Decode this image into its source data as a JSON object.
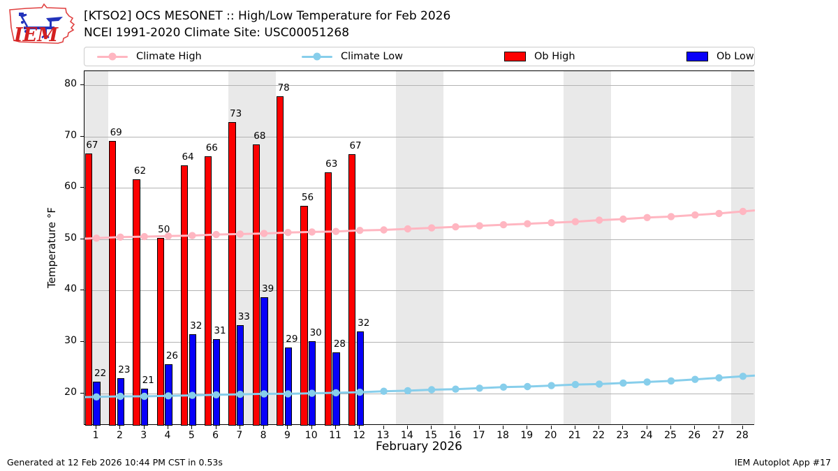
{
  "header": {
    "title_line1": "[KTSO2] OCS MESONET :: High/Low Temperature for Feb 2026",
    "title_line2": "NCEI 1991-2020 Climate Site: USC00051268"
  },
  "logo": {
    "text": "IEM"
  },
  "legend": {
    "items": [
      {
        "label": "Climate High",
        "type": "line",
        "color": "#ffb6c1"
      },
      {
        "label": "Climate Low",
        "type": "line",
        "color": "#87ceeb"
      },
      {
        "label": "Ob High",
        "type": "swatch",
        "color": "#fd0000"
      },
      {
        "label": "Ob Low",
        "type": "swatch",
        "color": "#0800f9"
      }
    ]
  },
  "chart_data": {
    "type": "bar",
    "title": "[KTSO2] OCS MESONET :: High/Low Temperature for Feb 2026",
    "subtitle": "NCEI 1991-2020 Climate Site: USC00051268",
    "xlabel": "February 2026",
    "ylabel": "Temperature °F",
    "xlim": [
      0.5,
      28.5
    ],
    "ylim": [
      13.7,
      82.7
    ],
    "yticks": [
      20,
      30,
      40,
      50,
      60,
      70,
      80
    ],
    "xticks": [
      1,
      2,
      3,
      4,
      5,
      6,
      7,
      8,
      9,
      10,
      11,
      12,
      13,
      14,
      15,
      16,
      17,
      18,
      19,
      20,
      21,
      22,
      23,
      24,
      25,
      26,
      27,
      28
    ],
    "grid": "horizontal",
    "legend_position": "top",
    "weekend_bands": [
      [
        0.5,
        1.5
      ],
      [
        6.5,
        8.5
      ],
      [
        13.5,
        15.5
      ],
      [
        20.5,
        22.5
      ],
      [
        27.5,
        28.5
      ]
    ],
    "series": [
      {
        "name": "Climate High",
        "type": "line",
        "color": "#ffb6c1",
        "x": [
          1,
          2,
          3,
          4,
          5,
          6,
          7,
          8,
          9,
          10,
          11,
          12,
          13,
          14,
          15,
          16,
          17,
          18,
          19,
          20,
          21,
          22,
          23,
          24,
          25,
          26,
          27,
          28
        ],
        "values": [
          50.2,
          50.4,
          50.5,
          50.6,
          50.7,
          50.9,
          51.0,
          51.1,
          51.3,
          51.4,
          51.5,
          51.7,
          51.8,
          52.0,
          52.2,
          52.4,
          52.6,
          52.8,
          53.0,
          53.2,
          53.4,
          53.7,
          53.9,
          54.2,
          54.4,
          54.7,
          55.0,
          55.4
        ]
      },
      {
        "name": "Climate Low",
        "type": "line",
        "color": "#87ceeb",
        "x": [
          1,
          2,
          3,
          4,
          5,
          6,
          7,
          8,
          9,
          10,
          11,
          12,
          13,
          14,
          15,
          16,
          17,
          18,
          19,
          20,
          21,
          22,
          23,
          24,
          25,
          26,
          27,
          28
        ],
        "values": [
          19.3,
          19.4,
          19.4,
          19.5,
          19.6,
          19.7,
          19.8,
          19.9,
          19.9,
          20.0,
          20.1,
          20.2,
          20.4,
          20.5,
          20.7,
          20.8,
          21.0,
          21.2,
          21.3,
          21.5,
          21.7,
          21.8,
          22.0,
          22.2,
          22.4,
          22.7,
          23.0,
          23.3
        ]
      },
      {
        "name": "Ob High",
        "type": "bar",
        "color": "#fd0000",
        "x": [
          1,
          2,
          3,
          4,
          5,
          6,
          7,
          8,
          9,
          10,
          11,
          12
        ],
        "values": [
          66.7,
          69.1,
          61.7,
          50.2,
          64.3,
          66.1,
          72.8,
          68.4,
          77.8,
          56.5,
          63.0,
          66.5
        ],
        "labels": [
          67,
          69,
          62,
          50,
          64,
          66,
          73,
          68,
          78,
          56,
          63,
          67
        ]
      },
      {
        "name": "Ob Low",
        "type": "bar",
        "color": "#0800f9",
        "x": [
          1,
          2,
          3,
          4,
          5,
          6,
          7,
          8,
          9,
          10,
          11,
          12
        ],
        "values": [
          22.3,
          23.0,
          20.9,
          25.7,
          31.5,
          30.6,
          33.3,
          38.7,
          28.9,
          30.2,
          27.9,
          32.1
        ],
        "labels": [
          22,
          23,
          21,
          26,
          32,
          31,
          33,
          39,
          29,
          30,
          28,
          32
        ]
      }
    ]
  },
  "footer": {
    "left": "Generated at 12 Feb 2026 10:44 PM CST in 0.53s",
    "right": "IEM Autoplot App #17"
  }
}
